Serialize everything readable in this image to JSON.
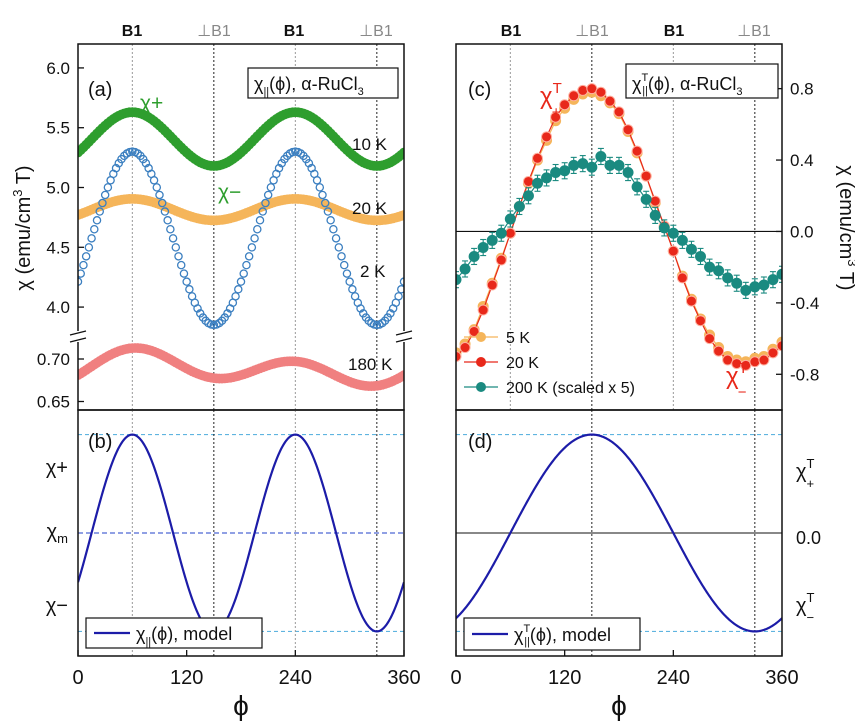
{
  "colors": {
    "green": "#2e9e2e",
    "orange": "#f5b55a",
    "blue_open": "#3b7fc0",
    "pink": "#f08080",
    "model_blue": "#1c1ca8",
    "red": "#e8281a",
    "teal": "#1a8a80",
    "dash_light": "#5fb4e0",
    "dash_dark": "#2040c8"
  },
  "top_labels": {
    "left": [
      "B1",
      "⊥B1",
      "B1",
      "⊥B1"
    ],
    "right": [
      "B1",
      "⊥B1",
      "B1",
      "⊥B1"
    ]
  },
  "x_axis": {
    "ticks": [
      "0",
      "120",
      "240",
      "360"
    ],
    "label": "ϕ"
  },
  "chart_data": [
    {
      "id": "a",
      "type": "scatter",
      "panel_label": "(a)",
      "legend": "χ||(ϕ), α-RuCl3",
      "ylabel": "χ (emu/cm3 T)",
      "xlim": [
        0,
        360
      ],
      "upper_ylim": [
        3.8,
        6.2
      ],
      "upper_yticks": [
        "4.0",
        "4.5",
        "5.0",
        "5.5",
        "6.0"
      ],
      "lower_ylim": [
        0.64,
        0.72
      ],
      "lower_yticks": [
        "0.65",
        "0.70"
      ],
      "vlines": [
        60,
        150,
        240,
        330
      ],
      "series": [
        {
          "name": "10 K",
          "offset": 5.405,
          "amp2": 0.225,
          "amp1": 0.0,
          "phase": 60,
          "marker": "filled",
          "axis": "upper"
        },
        {
          "name": "20 K",
          "offset": 4.815,
          "amp2": 0.09,
          "amp1": 0.0,
          "phase": 60,
          "marker": "filled",
          "axis": "upper"
        },
        {
          "name": "2 K",
          "offset": 4.575,
          "amp2": 0.725,
          "amp1": 0.0,
          "phase": 60,
          "marker": "open",
          "axis": "upper"
        },
        {
          "name": "180 K",
          "offset": 0.689,
          "amp2": 0.016,
          "amp1": 0.009,
          "phase": 60,
          "marker": "filled",
          "axis": "lower"
        }
      ],
      "annotations": [
        "χ+",
        "χ−"
      ]
    },
    {
      "id": "b",
      "type": "line",
      "panel_label": "(b)",
      "legend": "χ||(ϕ), model",
      "xlim": [
        0,
        360
      ],
      "ylim": [
        -1.25,
        1.25
      ],
      "yticks": [
        "χ+",
        "χm",
        "χ−"
      ],
      "levels": [
        1,
        0,
        -1
      ],
      "curve": {
        "amplitude": 1,
        "period": 180,
        "phase": 60
      },
      "vlines": [
        60,
        150,
        240,
        330
      ]
    },
    {
      "id": "c",
      "type": "scatter",
      "panel_label": "(c)",
      "legend": "χ||T(ϕ), α-RuCl3",
      "ylabel": "χ (emu/cm3 T)",
      "xlim": [
        0,
        360
      ],
      "ylim": [
        -1.0,
        1.05
      ],
      "yticks": [
        "-0.8",
        "-0.4",
        "0.0",
        "0.4",
        "0.8"
      ],
      "x": [
        0,
        10,
        20,
        30,
        40,
        50,
        60,
        70,
        80,
        90,
        100,
        110,
        120,
        130,
        140,
        150,
        160,
        170,
        180,
        190,
        200,
        210,
        220,
        230,
        240,
        250,
        260,
        270,
        280,
        290,
        300,
        310,
        320,
        330,
        340,
        350,
        360
      ],
      "series": [
        {
          "name": "5 K",
          "values": [
            -0.68,
            -0.63,
            -0.55,
            -0.42,
            -0.29,
            -0.15,
            -0.01,
            0.14,
            0.27,
            0.4,
            0.51,
            0.62,
            0.69,
            0.74,
            0.77,
            0.78,
            0.76,
            0.72,
            0.66,
            0.56,
            0.44,
            0.31,
            0.16,
            0.03,
            -0.11,
            -0.25,
            -0.38,
            -0.49,
            -0.58,
            -0.65,
            -0.7,
            -0.72,
            -0.73,
            -0.71,
            -0.7,
            -0.66,
            -0.62
          ]
        },
        {
          "name": "20 K",
          "values": [
            -0.7,
            -0.65,
            -0.56,
            -0.44,
            -0.3,
            -0.16,
            -0.01,
            0.14,
            0.28,
            0.41,
            0.53,
            0.64,
            0.71,
            0.76,
            0.79,
            0.8,
            0.78,
            0.73,
            0.67,
            0.57,
            0.45,
            0.31,
            0.17,
            0.03,
            -0.11,
            -0.26,
            -0.39,
            -0.5,
            -0.6,
            -0.67,
            -0.72,
            -0.74,
            -0.75,
            -0.73,
            -0.72,
            -0.68,
            -0.64
          ]
        },
        {
          "name": "200 K (scaled x 5)",
          "values": [
            -0.27,
            -0.21,
            -0.14,
            -0.09,
            -0.05,
            -0.01,
            0.07,
            0.14,
            0.2,
            0.27,
            0.3,
            0.33,
            0.34,
            0.37,
            0.38,
            0.36,
            0.42,
            0.37,
            0.37,
            0.33,
            0.25,
            0.18,
            0.09,
            0.02,
            -0.01,
            -0.05,
            -0.1,
            -0.14,
            -0.2,
            -0.22,
            -0.26,
            -0.29,
            -0.33,
            -0.31,
            -0.3,
            -0.27,
            -0.24
          ]
        }
      ],
      "error_series": 2,
      "annotations": [
        "χT+",
        "χT−"
      ],
      "vlines": [
        60,
        150,
        240,
        330
      ]
    },
    {
      "id": "d",
      "type": "line",
      "panel_label": "(d)",
      "legend": "χ||T(ϕ), model",
      "xlim": [
        0,
        360
      ],
      "ylim": [
        -1.25,
        1.25
      ],
      "yticks": [
        "χT+",
        "0.0",
        "χT−"
      ],
      "levels": [
        1,
        0,
        -1
      ],
      "curve": {
        "amplitude": 1,
        "period": 360,
        "phase": 150
      },
      "vlines": [
        150,
        330
      ]
    }
  ],
  "annotation_texts": {
    "chi_plus": "χ+",
    "chi_minus": "χ−",
    "chiT_plus_main": "χ",
    "chiT_plus_sup": "T",
    "chiT_plus_sub": "+",
    "chiT_minus_main": "χ",
    "chiT_minus_sup": "T",
    "chiT_minus_sub": "−",
    "legend_a_pre": "χ",
    "legend_a_sub": "||",
    "legend_a_post": "(ϕ), α-RuCl",
    "legend_a_sub3": "3",
    "legend_b_pre": "χ",
    "legend_b_sub": "||",
    "legend_b_post": "(ϕ), model",
    "legend_c_pre": "χ",
    "legend_c_sup": "T",
    "legend_c_sub": "||",
    "legend_c_post": "(ϕ), α-RuCl",
    "legend_c_sub3": "3",
    "legend_d_pre": "χ",
    "legend_d_sup": "T",
    "legend_d_sub": "||",
    "legend_d_post": "(ϕ), model",
    "ylabel_pre": "χ (emu/cm",
    "ylabel_sup": "3",
    "ylabel_post": " T)",
    "b_tick_plus": "χ+",
    "b_tick_m_main": "χ",
    "b_tick_m_sub": "m",
    "b_tick_minus": "χ−"
  }
}
